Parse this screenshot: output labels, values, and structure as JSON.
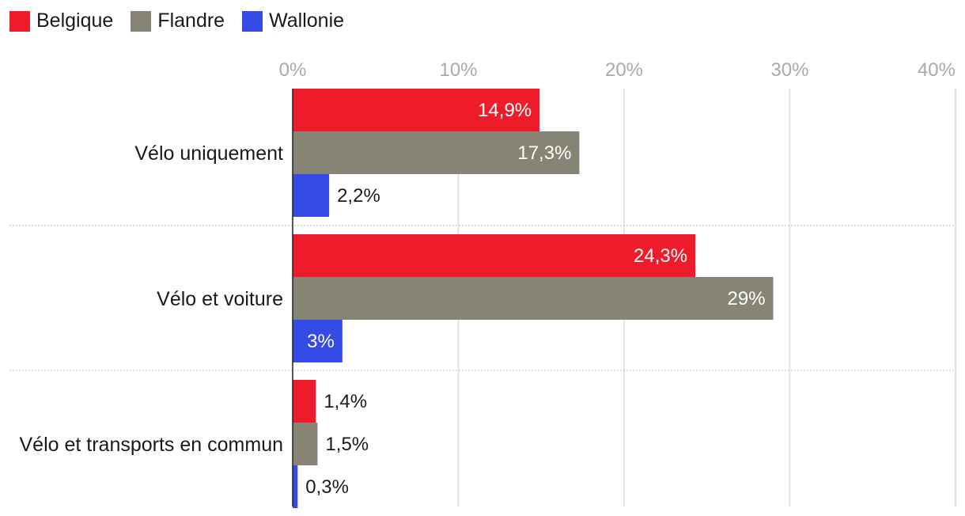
{
  "chart_data": {
    "type": "bar",
    "orientation": "horizontal",
    "categories": [
      "Vélo uniquement",
      "Vélo et voiture",
      "Vélo et transports en commun"
    ],
    "series": [
      {
        "name": "Belgique",
        "color": "#ee1c2b",
        "values": [
          14.9,
          24.3,
          1.4
        ],
        "labels": [
          "14,9%",
          "24,3%",
          "1,4%"
        ]
      },
      {
        "name": "Flandre",
        "color": "#868475",
        "values": [
          17.3,
          29.0,
          1.5
        ],
        "labels": [
          "17,3%",
          "29%",
          "1,5%"
        ]
      },
      {
        "name": "Wallonie",
        "color": "#334ae6",
        "values": [
          2.2,
          3.0,
          0.3
        ],
        "labels": [
          "2,2%",
          "3%",
          "0,3%"
        ]
      }
    ],
    "xlim": [
      0,
      40
    ],
    "ticks": [
      0,
      10,
      20,
      30,
      40
    ],
    "tick_labels": [
      "0%",
      "10%",
      "20%",
      "30%",
      "40%"
    ],
    "legend_position": "top-left",
    "grid": true
  }
}
